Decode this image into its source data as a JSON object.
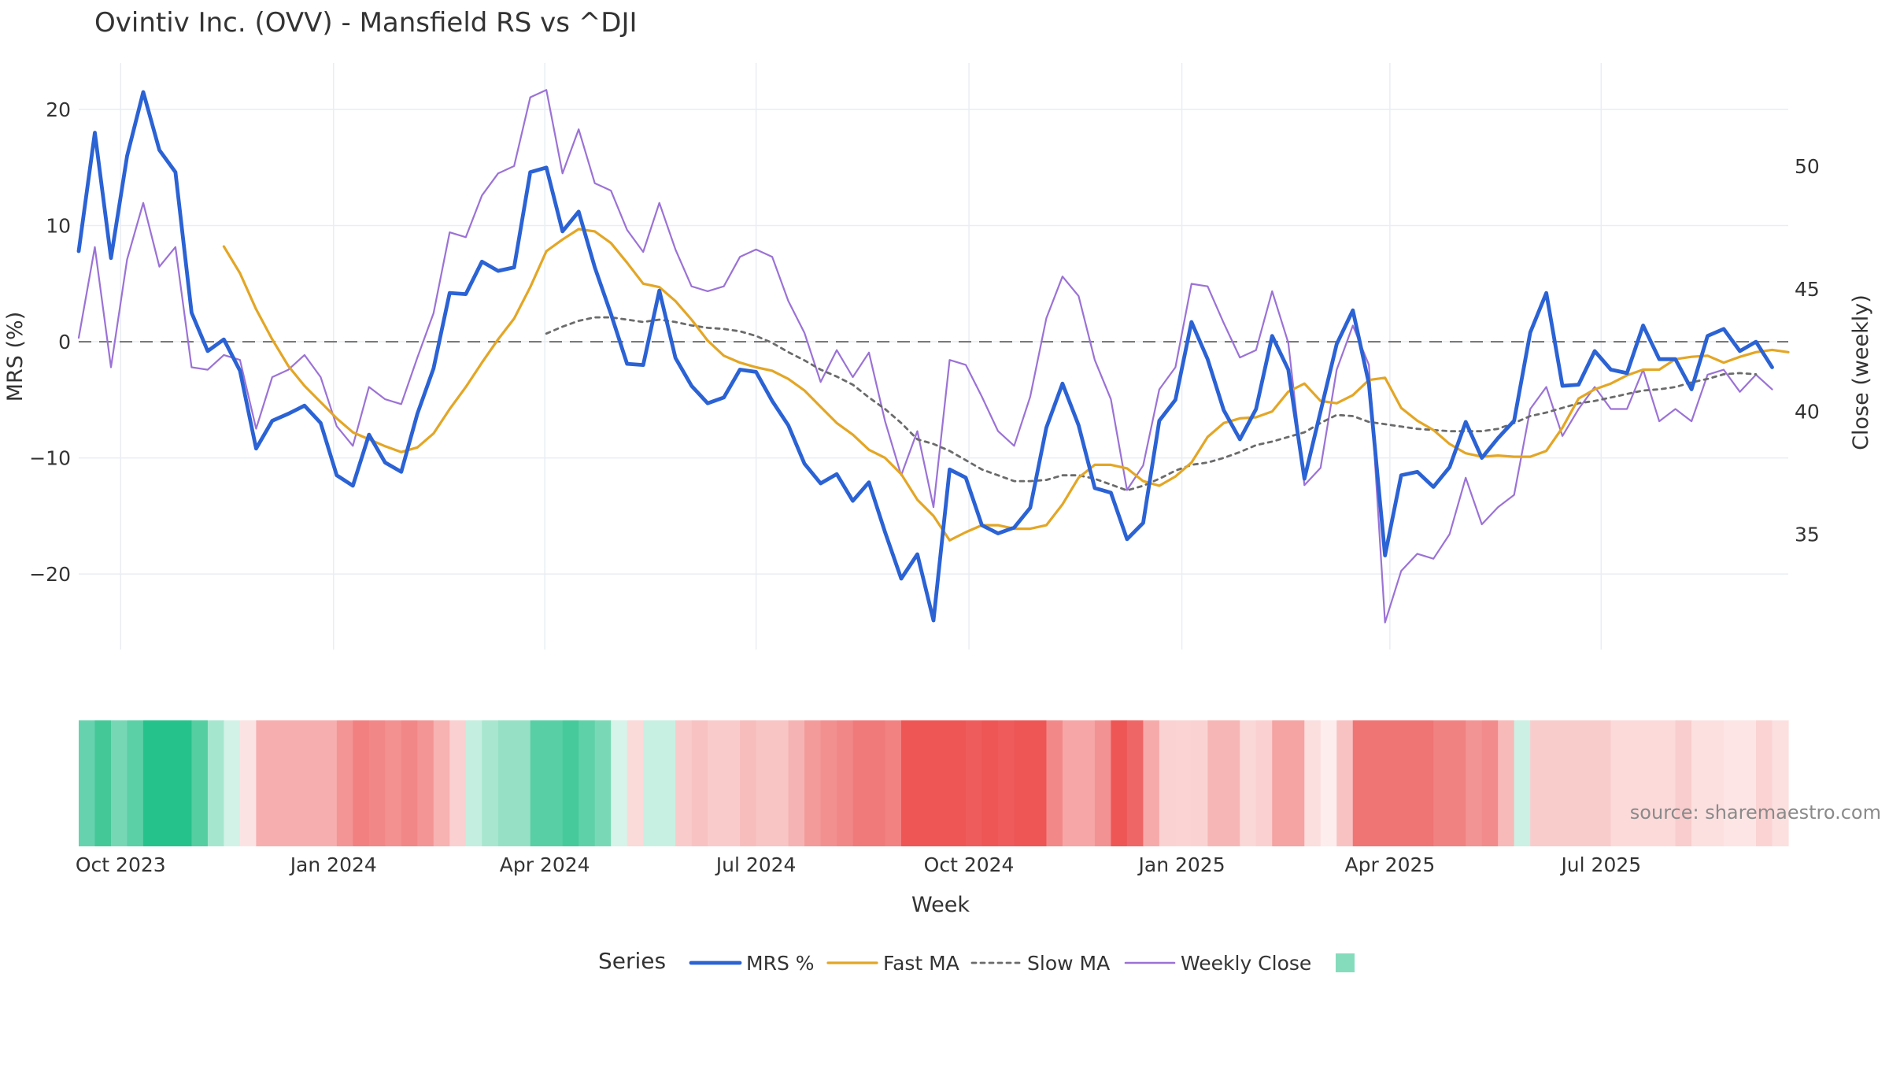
{
  "chart_data": {
    "type": "line",
    "title": "Ovintiv Inc. (OVV) - Mansfield RS vs ^DJI",
    "xlabel": "Week",
    "ylabel_left": "MRS (%)",
    "ylabel_right": "Close (weekly)",
    "ylim_left": [
      -26.5,
      24.0
    ],
    "ylim_right": [
      30.3,
      54.2
    ],
    "yticks_left": [
      20,
      10,
      0,
      -10,
      -20
    ],
    "yticks_left_labels": [
      "20",
      "10",
      "0",
      "−10",
      "−20"
    ],
    "yticks_right": [
      50,
      45,
      40,
      35
    ],
    "x_start_index": 0,
    "x_end_index": 106,
    "x_ticks": [
      {
        "index": 2.6,
        "label": "Oct 2023"
      },
      {
        "index": 15.8,
        "label": "Jan 2024"
      },
      {
        "index": 28.9,
        "label": "Apr 2024"
      },
      {
        "index": 42.0,
        "label": "Jul 2024"
      },
      {
        "index": 55.2,
        "label": "Oct 2024"
      },
      {
        "index": 68.4,
        "label": "Jan 2025"
      },
      {
        "index": 81.3,
        "label": "Apr 2025"
      },
      {
        "index": 94.4,
        "label": "Jul 2025"
      }
    ],
    "reference_line": {
      "value": 0,
      "style": "dashed"
    },
    "grid": true,
    "legend": {
      "title": "Series",
      "placement": "bottom-center",
      "entries": [
        "MRS %",
        "Fast MA",
        "Slow MA",
        "Weekly Close"
      ]
    },
    "source_note": "source: sharemaestro.com",
    "series": [
      {
        "name": "MRS %",
        "axis": "left",
        "color": "#2b62d4",
        "style": "solid-thick",
        "start_index": 0,
        "values": [
          7.8,
          18.0,
          7.2,
          16.0,
          21.5,
          16.5,
          14.6,
          2.5,
          -0.8,
          0.2,
          -2.5,
          -9.2,
          -6.8,
          -6.2,
          -5.5,
          -7.0,
          -11.5,
          -12.4,
          -8.0,
          -10.4,
          -11.2,
          -6.2,
          -2.3,
          4.2,
          4.1,
          6.9,
          6.1,
          6.4,
          14.6,
          15.0,
          9.5,
          11.2,
          6.4,
          2.4,
          -1.9,
          -2.0,
          4.4,
          -1.4,
          -3.8,
          -5.3,
          -4.8,
          -2.4,
          -2.6,
          -5.1,
          -7.2,
          -10.5,
          -12.2,
          -11.4,
          -13.7,
          -12.1,
          -16.4,
          -20.4,
          -18.3,
          -24.0,
          -11.0,
          -11.7,
          -15.8,
          -16.5,
          -16.0,
          -14.3,
          -7.4,
          -3.6,
          -7.2,
          -12.6,
          -13.0,
          -17.0,
          -15.6,
          -6.8,
          -5.0,
          1.7,
          -1.5,
          -5.9,
          -8.4,
          -5.8,
          0.5,
          -2.4,
          -11.8,
          -6.0,
          -0.2,
          2.7,
          -3.6,
          -18.4,
          -11.5,
          -11.2,
          -12.5,
          -10.8,
          -6.9,
          -10.0,
          -8.3,
          -6.8,
          0.8,
          4.2,
          -3.8,
          -3.7,
          -0.8,
          -2.4,
          -2.7,
          1.4,
          -1.5,
          -1.5,
          -4.1,
          0.5,
          1.1,
          -0.8,
          0.0,
          -2.2
        ]
      },
      {
        "name": "Fast MA",
        "axis": "left",
        "color": "#e3a625",
        "style": "solid",
        "start_index": 9,
        "values": [
          8.2,
          5.9,
          2.8,
          0.2,
          -2.1,
          -3.8,
          -5.2,
          -6.6,
          -7.8,
          -8.4,
          -9.0,
          -9.5,
          -9.1,
          -7.9,
          -5.8,
          -3.9,
          -1.8,
          0.2,
          2.0,
          4.7,
          7.8,
          8.8,
          9.7,
          9.5,
          8.5,
          6.8,
          5.0,
          4.7,
          3.5,
          1.9,
          0.1,
          -1.2,
          -1.8,
          -2.2,
          -2.5,
          -3.2,
          -4.2,
          -5.6,
          -7.0,
          -8.0,
          -9.3,
          -10.0,
          -11.4,
          -13.6,
          -15.0,
          -17.1,
          -16.4,
          -15.8,
          -15.8,
          -16.1,
          -16.1,
          -15.8,
          -14.0,
          -11.7,
          -10.6,
          -10.6,
          -10.9,
          -12.0,
          -12.4,
          -11.6,
          -10.4,
          -8.2,
          -7.0,
          -6.6,
          -6.5,
          -6.0,
          -4.3,
          -3.6,
          -5.1,
          -5.3,
          -4.6,
          -3.3,
          -3.1,
          -5.7,
          -6.8,
          -7.6,
          -8.8,
          -9.6,
          -9.9,
          -9.8,
          -9.9,
          -9.9,
          -9.4,
          -7.4,
          -4.9,
          -4.1,
          -3.6,
          -2.9,
          -2.4,
          -2.4,
          -1.5,
          -1.3,
          -1.2,
          -1.8,
          -1.3,
          -0.9,
          -0.7,
          -0.9
        ]
      },
      {
        "name": "Slow MA",
        "axis": "left",
        "color": "#6b6b6b",
        "style": "dotted",
        "start_index": 29,
        "values": [
          0.7,
          1.3,
          1.8,
          2.1,
          2.1,
          1.9,
          1.7,
          1.9,
          1.7,
          1.4,
          1.2,
          1.1,
          0.9,
          0.5,
          -0.1,
          -0.9,
          -1.6,
          -2.4,
          -3.0,
          -3.7,
          -4.8,
          -5.8,
          -7.0,
          -8.4,
          -8.8,
          -9.4,
          -10.2,
          -11.0,
          -11.5,
          -12.0,
          -12.0,
          -11.9,
          -11.5,
          -11.5,
          -11.8,
          -12.3,
          -12.8,
          -12.4,
          -11.8,
          -11.1,
          -10.6,
          -10.4,
          -10.0,
          -9.5,
          -8.9,
          -8.6,
          -8.2,
          -7.8,
          -7.0,
          -6.3,
          -6.4,
          -6.9,
          -7.1,
          -7.3,
          -7.5,
          -7.6,
          -7.7,
          -7.7,
          -7.7,
          -7.5,
          -7.0,
          -6.4,
          -6.1,
          -5.7,
          -5.3,
          -5.1,
          -4.8,
          -4.5,
          -4.2,
          -4.1,
          -3.9,
          -3.5,
          -3.2,
          -2.8,
          -2.7,
          -2.8
        ]
      },
      {
        "name": "Weekly Close",
        "axis": "right",
        "color": "#9b72d6",
        "style": "solid-thin",
        "start_index": 0,
        "values": [
          43.0,
          46.7,
          41.8,
          46.2,
          48.5,
          45.9,
          46.7,
          41.8,
          41.7,
          42.3,
          42.1,
          39.3,
          41.4,
          41.7,
          42.3,
          41.4,
          39.4,
          38.6,
          41.0,
          40.5,
          40.3,
          42.2,
          44.0,
          47.3,
          47.1,
          48.8,
          49.7,
          50.0,
          52.8,
          53.1,
          49.7,
          51.5,
          49.3,
          49.0,
          47.4,
          46.5,
          48.5,
          46.6,
          45.1,
          44.9,
          45.1,
          46.3,
          46.6,
          46.3,
          44.5,
          43.2,
          41.2,
          42.5,
          41.4,
          42.4,
          39.6,
          37.4,
          39.2,
          36.1,
          42.1,
          41.9,
          40.6,
          39.2,
          38.6,
          40.6,
          43.8,
          45.5,
          44.7,
          42.1,
          40.5,
          36.8,
          37.8,
          40.9,
          41.8,
          45.2,
          45.1,
          43.6,
          42.2,
          42.5,
          44.9,
          42.8,
          37.0,
          37.7,
          41.7,
          43.5,
          41.9,
          31.4,
          33.5,
          34.2,
          34.0,
          35.0,
          37.3,
          35.4,
          36.1,
          36.6,
          40.1,
          41.0,
          39.0,
          40.1,
          41.0,
          40.1,
          40.1,
          41.7,
          39.6,
          40.1,
          39.6,
          41.5,
          41.7,
          40.8,
          41.5,
          40.9
        ]
      }
    ],
    "heat_strip": {
      "start_index": 0,
      "colors": [
        "#66d2ae",
        "#45c897",
        "#76d7b5",
        "#5bcfa6",
        "#26c28c",
        "#26c28c",
        "#26c28c",
        "#55cea2",
        "#a5e6cf",
        "#d2f2e7",
        "#fce3e3",
        "#f6aeae",
        "#f6aeae",
        "#f6aeae",
        "#f6aeae",
        "#f6aeae",
        "#f39595",
        "#f28080",
        "#f28787",
        "#f39191",
        "#f28787",
        "#f39595",
        "#f7b2b2",
        "#fad0d0",
        "#c4eedf",
        "#a8e6d0",
        "#96e1c5",
        "#96e1c5",
        "#58cfa5",
        "#58cfa5",
        "#46ca9c",
        "#5fd1a9",
        "#79d9b6",
        "#d6f4e9",
        "#fbdada",
        "#c8f0e2",
        "#c8f0e2",
        "#f9cbcb",
        "#f8c2c2",
        "#f9cbcb",
        "#f9cbcb",
        "#f7bdbd",
        "#f8c4c4",
        "#f8c4c4",
        "#f6b3b3",
        "#f39a9a",
        "#f29090",
        "#f28787",
        "#f07a7a",
        "#f07a7a",
        "#f28282",
        "#ee5656",
        "#ee5656",
        "#ee5656",
        "#ee5656",
        "#ef5c5c",
        "#ee5656",
        "#ef5a5a",
        "#ee5656",
        "#ee5656",
        "#f28888",
        "#f6a6a6",
        "#f6a6a6",
        "#f39292",
        "#ee5656",
        "#ef6666",
        "#f7aaaa",
        "#fad2d2",
        "#fbd3d3",
        "#fad2d2",
        "#f7b6b6",
        "#f7b6b6",
        "#fbd8d8",
        "#fad0d0",
        "#f5a3a3",
        "#f5a3a3",
        "#fbdede",
        "#fdeded",
        "#f9c2c2",
        "#ef7474",
        "#ef7474",
        "#ef7474",
        "#ef7474",
        "#ef7474",
        "#f18282",
        "#f18282",
        "#f39494",
        "#f28b8b",
        "#f8b9b9",
        "#ccf0e4",
        "#f9cccc",
        "#f9cccc",
        "#f9cccc",
        "#f9cccc",
        "#f9cccc",
        "#fcdada",
        "#fcdada",
        "#fcdada",
        "#fcdada",
        "#f9cdcd",
        "#fce0e0",
        "#fce0e0",
        "#fde5e5",
        "#fde5e5",
        "#fbd3d3",
        "#fce0e0"
      ]
    }
  }
}
